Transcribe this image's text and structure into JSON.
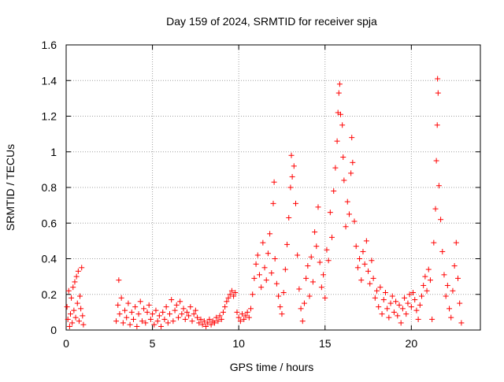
{
  "chart_data": {
    "type": "scatter",
    "title": "Day 159 of 2024, SRMTID for receiver spja",
    "xlabel": "GPS time / hours",
    "ylabel": "SRMTID / TECUs",
    "xlim": [
      0,
      24
    ],
    "ylim": [
      0,
      1.6
    ],
    "x_ticks": [
      0,
      5,
      10,
      15,
      20
    ],
    "x_tick_labels": [
      "0",
      "5",
      "10",
      "15",
      "20"
    ],
    "y_ticks": [
      0,
      0.2,
      0.4,
      0.6,
      0.8,
      1.0,
      1.2,
      1.4,
      1.6
    ],
    "y_tick_labels": [
      "0",
      "0.2",
      "0.4",
      "0.6",
      "0.8",
      "1",
      "1.2",
      "1.4",
      "1.6"
    ],
    "grid": true,
    "marker": "+",
    "marker_color": "#ff0000",
    "series": [
      {
        "name": "SRMTID",
        "points": [
          [
            0.05,
            0.13
          ],
          [
            0.1,
            0.06
          ],
          [
            0.15,
            0.22
          ],
          [
            0.2,
            0.02
          ],
          [
            0.25,
            0.09
          ],
          [
            0.3,
            0.18
          ],
          [
            0.35,
            0.04
          ],
          [
            0.4,
            0.24
          ],
          [
            0.45,
            0.11
          ],
          [
            0.5,
            0.27
          ],
          [
            0.55,
            0.07
          ],
          [
            0.6,
            0.3
          ],
          [
            0.65,
            0.15
          ],
          [
            0.7,
            0.33
          ],
          [
            0.75,
            0.05
          ],
          [
            0.8,
            0.19
          ],
          [
            0.85,
            0.12
          ],
          [
            0.9,
            0.35
          ],
          [
            0.95,
            0.08
          ],
          [
            1.0,
            0.03
          ],
          [
            2.9,
            0.05
          ],
          [
            3.0,
            0.14
          ],
          [
            3.05,
            0.28
          ],
          [
            3.1,
            0.09
          ],
          [
            3.2,
            0.18
          ],
          [
            3.3,
            0.04
          ],
          [
            3.4,
            0.11
          ],
          [
            3.5,
            0.07
          ],
          [
            3.6,
            0.15
          ],
          [
            3.7,
            0.03
          ],
          [
            3.8,
            0.1
          ],
          [
            3.9,
            0.06
          ],
          [
            4.0,
            0.13
          ],
          [
            4.1,
            0.02
          ],
          [
            4.2,
            0.09
          ],
          [
            4.3,
            0.16
          ],
          [
            4.4,
            0.05
          ],
          [
            4.5,
            0.12
          ],
          [
            4.6,
            0.04
          ],
          [
            4.7,
            0.1
          ],
          [
            4.8,
            0.14
          ],
          [
            4.9,
            0.06
          ],
          [
            5.0,
            0.09
          ],
          [
            5.1,
            0.03
          ],
          [
            5.2,
            0.11
          ],
          [
            5.3,
            0.05
          ],
          [
            5.4,
            0.08
          ],
          [
            5.5,
            0.02
          ],
          [
            5.6,
            0.1
          ],
          [
            5.7,
            0.06
          ],
          [
            5.8,
            0.13
          ],
          [
            5.9,
            0.04
          ],
          [
            6.0,
            0.09
          ],
          [
            6.1,
            0.17
          ],
          [
            6.2,
            0.05
          ],
          [
            6.3,
            0.11
          ],
          [
            6.4,
            0.14
          ],
          [
            6.5,
            0.07
          ],
          [
            6.6,
            0.16
          ],
          [
            6.7,
            0.09
          ],
          [
            6.8,
            0.12
          ],
          [
            6.9,
            0.06
          ],
          [
            7.0,
            0.1
          ],
          [
            7.1,
            0.08
          ],
          [
            7.2,
            0.13
          ],
          [
            7.3,
            0.05
          ],
          [
            7.4,
            0.09
          ],
          [
            7.5,
            0.11
          ],
          [
            7.6,
            0.07
          ],
          [
            7.7,
            0.04
          ],
          [
            7.8,
            0.06
          ],
          [
            7.9,
            0.03
          ],
          [
            8.0,
            0.05
          ],
          [
            8.1,
            0.02
          ],
          [
            8.2,
            0.04
          ],
          [
            8.3,
            0.06
          ],
          [
            8.4,
            0.03
          ],
          [
            8.5,
            0.05
          ],
          [
            8.6,
            0.04
          ],
          [
            8.7,
            0.07
          ],
          [
            8.8,
            0.05
          ],
          [
            8.9,
            0.08
          ],
          [
            9.0,
            0.06
          ],
          [
            9.1,
            0.1
          ],
          [
            9.2,
            0.13
          ],
          [
            9.3,
            0.16
          ],
          [
            9.4,
            0.18
          ],
          [
            9.5,
            0.2
          ],
          [
            9.6,
            0.22
          ],
          [
            9.7,
            0.19
          ],
          [
            9.8,
            0.21
          ],
          [
            9.9,
            0.1
          ],
          [
            10.0,
            0.07
          ],
          [
            10.1,
            0.05
          ],
          [
            10.2,
            0.09
          ],
          [
            10.3,
            0.06
          ],
          [
            10.4,
            0.08
          ],
          [
            10.5,
            0.1
          ],
          [
            10.6,
            0.07
          ],
          [
            10.7,
            0.12
          ],
          [
            10.8,
            0.2
          ],
          [
            10.9,
            0.29
          ],
          [
            11.0,
            0.37
          ],
          [
            11.1,
            0.42
          ],
          [
            11.2,
            0.31
          ],
          [
            11.3,
            0.24
          ],
          [
            11.4,
            0.49
          ],
          [
            11.5,
            0.35
          ],
          [
            11.6,
            0.28
          ],
          [
            11.7,
            0.43
          ],
          [
            11.8,
            0.54
          ],
          [
            11.9,
            0.32
          ],
          [
            12.0,
            0.71
          ],
          [
            12.05,
            0.83
          ],
          [
            12.1,
            0.4
          ],
          [
            12.2,
            0.26
          ],
          [
            12.3,
            0.19
          ],
          [
            12.4,
            0.13
          ],
          [
            12.5,
            0.09
          ],
          [
            12.6,
            0.21
          ],
          [
            12.7,
            0.34
          ],
          [
            12.8,
            0.48
          ],
          [
            12.9,
            0.63
          ],
          [
            13.0,
            0.8
          ],
          [
            13.05,
            0.98
          ],
          [
            13.1,
            0.86
          ],
          [
            13.2,
            0.92
          ],
          [
            13.3,
            0.71
          ],
          [
            13.4,
            0.42
          ],
          [
            13.5,
            0.23
          ],
          [
            13.6,
            0.12
          ],
          [
            13.7,
            0.05
          ],
          [
            13.8,
            0.15
          ],
          [
            13.9,
            0.29
          ],
          [
            14.0,
            0.36
          ],
          [
            14.1,
            0.19
          ],
          [
            14.2,
            0.41
          ],
          [
            14.3,
            0.27
          ],
          [
            14.4,
            0.55
          ],
          [
            14.5,
            0.47
          ],
          [
            14.6,
            0.69
          ],
          [
            14.7,
            0.38
          ],
          [
            14.8,
            0.24
          ],
          [
            14.9,
            0.31
          ],
          [
            15.0,
            0.18
          ],
          [
            15.1,
            0.45
          ],
          [
            15.2,
            0.39
          ],
          [
            15.3,
            0.66
          ],
          [
            15.4,
            0.52
          ],
          [
            15.5,
            0.78
          ],
          [
            15.6,
            0.91
          ],
          [
            15.7,
            1.06
          ],
          [
            15.75,
            1.22
          ],
          [
            15.8,
            1.33
          ],
          [
            15.85,
            1.38
          ],
          [
            15.9,
            1.21
          ],
          [
            16.0,
            1.15
          ],
          [
            16.05,
            0.97
          ],
          [
            16.1,
            0.84
          ],
          [
            16.2,
            0.58
          ],
          [
            16.3,
            0.72
          ],
          [
            16.4,
            0.65
          ],
          [
            16.5,
            0.88
          ],
          [
            16.55,
            1.08
          ],
          [
            16.6,
            0.94
          ],
          [
            16.7,
            0.61
          ],
          [
            16.8,
            0.47
          ],
          [
            16.9,
            0.35
          ],
          [
            17.0,
            0.4
          ],
          [
            17.1,
            0.28
          ],
          [
            17.2,
            0.44
          ],
          [
            17.3,
            0.37
          ],
          [
            17.4,
            0.5
          ],
          [
            17.5,
            0.33
          ],
          [
            17.6,
            0.26
          ],
          [
            17.7,
            0.39
          ],
          [
            17.8,
            0.29
          ],
          [
            17.9,
            0.18
          ],
          [
            18.0,
            0.22
          ],
          [
            18.1,
            0.13
          ],
          [
            18.2,
            0.24
          ],
          [
            18.3,
            0.09
          ],
          [
            18.4,
            0.17
          ],
          [
            18.5,
            0.21
          ],
          [
            18.6,
            0.12
          ],
          [
            18.7,
            0.07
          ],
          [
            18.8,
            0.15
          ],
          [
            18.9,
            0.19
          ],
          [
            19.0,
            0.1
          ],
          [
            19.1,
            0.16
          ],
          [
            19.2,
            0.08
          ],
          [
            19.3,
            0.14
          ],
          [
            19.4,
            0.04
          ],
          [
            19.5,
            0.12
          ],
          [
            19.6,
            0.18
          ],
          [
            19.7,
            0.09
          ],
          [
            19.8,
            0.15
          ],
          [
            19.9,
            0.2
          ],
          [
            20.0,
            0.13
          ],
          [
            20.1,
            0.21
          ],
          [
            20.2,
            0.17
          ],
          [
            20.3,
            0.11
          ],
          [
            20.4,
            0.06
          ],
          [
            20.5,
            0.14
          ],
          [
            20.6,
            0.19
          ],
          [
            20.7,
            0.25
          ],
          [
            20.8,
            0.3
          ],
          [
            20.9,
            0.22
          ],
          [
            21.0,
            0.34
          ],
          [
            21.1,
            0.28
          ],
          [
            21.2,
            0.06
          ],
          [
            21.3,
            0.49
          ],
          [
            21.4,
            0.68
          ],
          [
            21.45,
            0.95
          ],
          [
            21.5,
            1.15
          ],
          [
            21.52,
            1.41
          ],
          [
            21.55,
            1.33
          ],
          [
            21.6,
            0.81
          ],
          [
            21.7,
            0.62
          ],
          [
            21.8,
            0.44
          ],
          [
            21.9,
            0.31
          ],
          [
            22.0,
            0.19
          ],
          [
            22.1,
            0.25
          ],
          [
            22.2,
            0.12
          ],
          [
            22.3,
            0.07
          ],
          [
            22.4,
            0.22
          ],
          [
            22.5,
            0.36
          ],
          [
            22.6,
            0.49
          ],
          [
            22.7,
            0.29
          ],
          [
            22.8,
            0.15
          ],
          [
            22.9,
            0.04
          ]
        ]
      }
    ]
  }
}
